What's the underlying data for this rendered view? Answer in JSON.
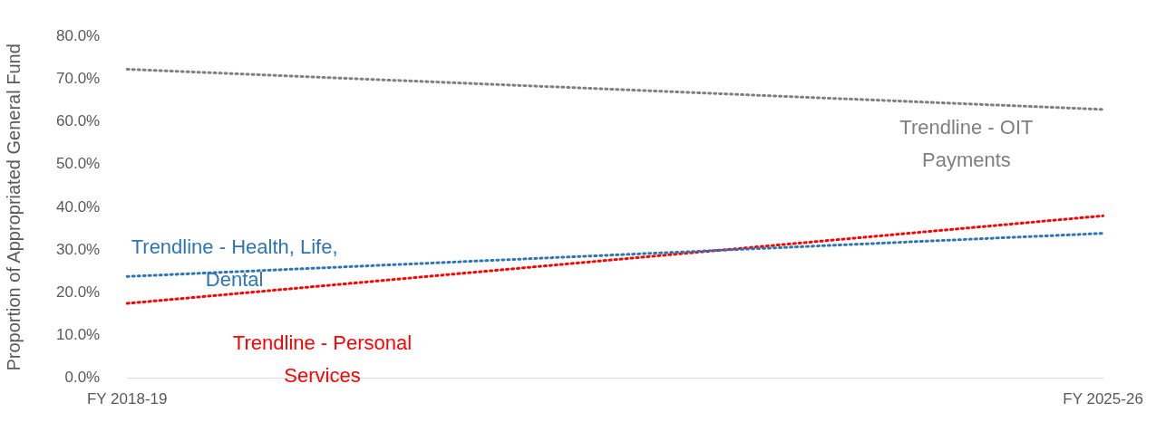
{
  "chart_data": {
    "type": "line",
    "ylabel": "Proportion of Appropriated General Fund",
    "categories": [
      "FY 2018-19",
      "FY 2025-26"
    ],
    "series": [
      {
        "name": "Trendline - OIT Payments",
        "color": "#7f7f7f",
        "values": [
          72.3,
          62.9
        ]
      },
      {
        "name": "Trendline - Health, Life, Dental",
        "color": "#2e75b6",
        "values": [
          23.8,
          33.9
        ]
      },
      {
        "name": "Trendline - Personal Services",
        "color": "#ff0000",
        "values": [
          17.5,
          38.0
        ]
      }
    ],
    "ylim": [
      0,
      80
    ],
    "yticks": [
      {
        "value": 0,
        "label": "0.0%"
      },
      {
        "value": 10,
        "label": "10.0%"
      },
      {
        "value": 20,
        "label": "20.0%"
      },
      {
        "value": 30,
        "label": "30.0%"
      },
      {
        "value": 40,
        "label": "40.0%"
      },
      {
        "value": 50,
        "label": "50.0%"
      },
      {
        "value": 60,
        "label": "60.0%"
      },
      {
        "value": 70,
        "label": "70.0%"
      },
      {
        "value": 80,
        "label": "80.0%"
      }
    ],
    "grid": false,
    "legend": false,
    "marker": "none",
    "line_style": "dotted"
  }
}
